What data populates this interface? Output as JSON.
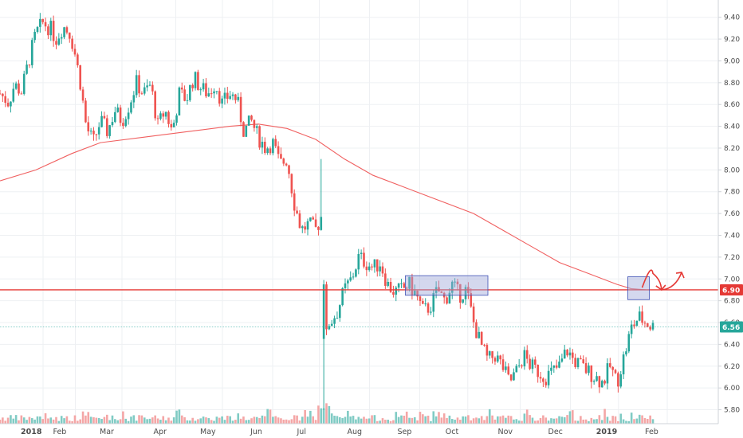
{
  "colors": {
    "up": "#26a69a",
    "down": "#ef5350",
    "volume_up": "#80cbc4",
    "volume_down": "#f4a6a6",
    "ma": "#f06060",
    "hline": "#e53935",
    "last_line": "#26a69a",
    "box_fill": "#9fa8da",
    "box_stroke": "#3f51b5",
    "arrow": "#e53935",
    "grid": "#eef0f3",
    "axis": "#cfd3d8"
  },
  "price_badges": [
    {
      "label": "6.90",
      "value": 6.9,
      "color": "#e53935"
    },
    {
      "label": "6.56",
      "value": 6.56,
      "color": "#26a69a"
    }
  ],
  "chart_data": {
    "type": "candlestick",
    "title": "",
    "grid": true,
    "y_axis_position": "right",
    "ylim": [
      5.75,
      9.5
    ],
    "y_ticks": [
      "9.40",
      "9.20",
      "9.00",
      "8.80",
      "8.60",
      "8.40",
      "8.20",
      "8.00",
      "7.80",
      "7.60",
      "7.40",
      "7.20",
      "7.00",
      "6.80",
      "6.60",
      "6.40",
      "6.20",
      "6.00",
      "5.80"
    ],
    "x_ticks": [
      {
        "label": "2018",
        "t": 0.06,
        "bold": true
      },
      {
        "label": "Feb",
        "t": 0.105
      },
      {
        "label": "Mar",
        "t": 0.17
      },
      {
        "label": "Apr",
        "t": 0.245
      },
      {
        "label": "May",
        "t": 0.31
      },
      {
        "label": "Jun",
        "t": 0.38
      },
      {
        "label": "Jul",
        "t": 0.445
      },
      {
        "label": "Aug",
        "t": 0.515
      },
      {
        "label": "Sep",
        "t": 0.585
      },
      {
        "label": "Oct",
        "t": 0.652
      },
      {
        "label": "Nov",
        "t": 0.725
      },
      {
        "label": "Dec",
        "t": 0.795
      },
      {
        "label": "2019",
        "t": 0.862,
        "bold": true
      },
      {
        "label": "Feb",
        "t": 0.93
      }
    ],
    "horizontal_line": 6.9,
    "last_price": 6.56,
    "price_path": [
      [
        0.0,
        8.7
      ],
      [
        0.012,
        8.62
      ],
      [
        0.02,
        8.78
      ],
      [
        0.03,
        8.72
      ],
      [
        0.04,
        9.0
      ],
      [
        0.05,
        9.25
      ],
      [
        0.06,
        9.35
      ],
      [
        0.07,
        9.3
      ],
      [
        0.078,
        9.2
      ],
      [
        0.088,
        9.32
      ],
      [
        0.098,
        9.25
      ],
      [
        0.105,
        9.05
      ],
      [
        0.112,
        8.8
      ],
      [
        0.12,
        8.4
      ],
      [
        0.13,
        8.25
      ],
      [
        0.14,
        8.45
      ],
      [
        0.15,
        8.35
      ],
      [
        0.16,
        8.55
      ],
      [
        0.17,
        8.45
      ],
      [
        0.18,
        8.6
      ],
      [
        0.19,
        8.8
      ],
      [
        0.2,
        8.7
      ],
      [
        0.21,
        8.78
      ],
      [
        0.22,
        8.4
      ],
      [
        0.23,
        8.55
      ],
      [
        0.24,
        8.35
      ],
      [
        0.25,
        8.7
      ],
      [
        0.26,
        8.65
      ],
      [
        0.27,
        8.85
      ],
      [
        0.28,
        8.75
      ],
      [
        0.29,
        8.7
      ],
      [
        0.3,
        8.8
      ],
      [
        0.31,
        8.6
      ],
      [
        0.32,
        8.7
      ],
      [
        0.33,
        8.65
      ],
      [
        0.34,
        8.35
      ],
      [
        0.35,
        8.45
      ],
      [
        0.36,
        8.3
      ],
      [
        0.37,
        8.2
      ],
      [
        0.38,
        8.25
      ],
      [
        0.39,
        8.05
      ],
      [
        0.4,
        8.1
      ],
      [
        0.41,
        7.7
      ],
      [
        0.42,
        7.45
      ],
      [
        0.43,
        7.5
      ],
      [
        0.44,
        7.45
      ],
      [
        0.45,
        7.6
      ],
      [
        0.452,
        6.55
      ],
      [
        0.46,
        6.6
      ],
      [
        0.47,
        6.7
      ],
      [
        0.48,
        6.9
      ],
      [
        0.49,
        7.0
      ],
      [
        0.5,
        7.2
      ],
      [
        0.51,
        7.15
      ],
      [
        0.52,
        7.1
      ],
      [
        0.53,
        7.15
      ],
      [
        0.54,
        6.95
      ],
      [
        0.55,
        6.88
      ],
      [
        0.56,
        6.9
      ],
      [
        0.57,
        6.95
      ],
      [
        0.58,
        6.85
      ],
      [
        0.59,
        6.7
      ],
      [
        0.6,
        6.75
      ],
      [
        0.61,
        6.9
      ],
      [
        0.62,
        6.8
      ],
      [
        0.63,
        6.95
      ],
      [
        0.64,
        6.85
      ],
      [
        0.65,
        6.9
      ],
      [
        0.66,
        6.6
      ],
      [
        0.67,
        6.4
      ],
      [
        0.68,
        6.25
      ],
      [
        0.69,
        6.3
      ],
      [
        0.7,
        6.2
      ],
      [
        0.71,
        6.05
      ],
      [
        0.72,
        6.15
      ],
      [
        0.73,
        6.3
      ],
      [
        0.74,
        6.2
      ],
      [
        0.75,
        6.15
      ],
      [
        0.76,
        6.1
      ],
      [
        0.77,
        6.15
      ],
      [
        0.78,
        6.2
      ],
      [
        0.79,
        6.35
      ],
      [
        0.8,
        6.25
      ],
      [
        0.81,
        6.2
      ],
      [
        0.82,
        6.15
      ],
      [
        0.83,
        6.1
      ],
      [
        0.84,
        6.05
      ],
      [
        0.85,
        6.2
      ],
      [
        0.86,
        6.05
      ],
      [
        0.87,
        6.3
      ],
      [
        0.88,
        6.55
      ],
      [
        0.89,
        6.65
      ],
      [
        0.9,
        6.6
      ],
      [
        0.91,
        6.56
      ]
    ],
    "moving_average": [
      [
        0.0,
        7.9
      ],
      [
        0.05,
        8.0
      ],
      [
        0.1,
        8.15
      ],
      [
        0.14,
        8.25
      ],
      [
        0.2,
        8.3
      ],
      [
        0.26,
        8.35
      ],
      [
        0.32,
        8.4
      ],
      [
        0.36,
        8.42
      ],
      [
        0.4,
        8.38
      ],
      [
        0.44,
        8.28
      ],
      [
        0.48,
        8.1
      ],
      [
        0.52,
        7.95
      ],
      [
        0.56,
        7.85
      ],
      [
        0.6,
        7.75
      ],
      [
        0.66,
        7.6
      ],
      [
        0.7,
        7.45
      ],
      [
        0.74,
        7.3
      ],
      [
        0.78,
        7.15
      ],
      [
        0.82,
        7.05
      ],
      [
        0.86,
        6.95
      ],
      [
        0.88,
        6.91
      ],
      [
        0.9,
        6.9
      ]
    ],
    "annotations": [
      {
        "type": "rect",
        "t0": 0.565,
        "t1": 0.68,
        "y0": 6.85,
        "y1": 7.03
      },
      {
        "type": "rect",
        "t0": 0.875,
        "t1": 0.905,
        "y0": 6.81,
        "y1": 7.02
      },
      {
        "type": "arrow",
        "points": [
          [
            0.895,
            6.92
          ],
          [
            0.91,
            7.05
          ],
          [
            0.922,
            6.9
          ],
          [
            0.93,
            6.88
          ],
          [
            0.95,
            7.06
          ]
        ]
      }
    ]
  }
}
